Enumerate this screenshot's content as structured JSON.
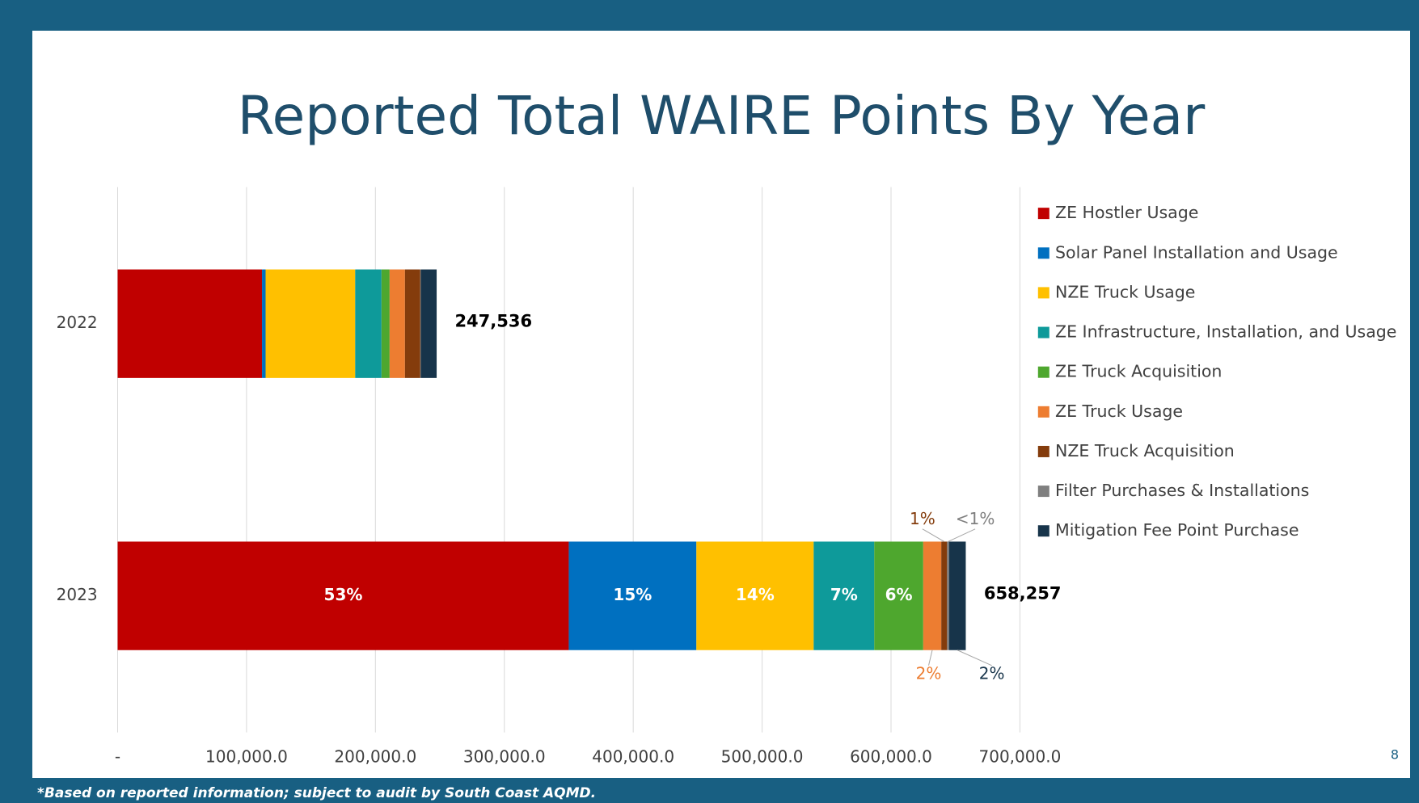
{
  "chart_data": {
    "type": "bar",
    "orientation": "horizontal",
    "stacked": true,
    "title": "Reported Total WAIRE Points By Year",
    "categories": [
      "2022",
      "2023"
    ],
    "series": [
      {
        "name": "ZE Hostler Usage",
        "color": "#c00000",
        "values": [
          112000,
          350000
        ],
        "value_labels": [
          null,
          "53%"
        ]
      },
      {
        "name": "Solar Panel Installation and Usage",
        "color": "#0070c0",
        "values": [
          2800,
          99000
        ],
        "value_labels": [
          null,
          "15%"
        ]
      },
      {
        "name": "NZE Truck Usage",
        "color": "#ffc000",
        "values": [
          69500,
          91000
        ],
        "value_labels": [
          null,
          "14%"
        ]
      },
      {
        "name": "ZE Infrastructure, Installation, and Usage",
        "color": "#0e9a9a",
        "values": [
          20400,
          47000
        ],
        "value_labels": [
          null,
          "7%"
        ]
      },
      {
        "name": "ZE Truck Acquisition",
        "color": "#4ea72e",
        "values": [
          6300,
          38000
        ],
        "value_labels": [
          null,
          "6%"
        ]
      },
      {
        "name": "ZE Truck Usage",
        "color": "#ed7d31",
        "values": [
          11900,
          14000
        ],
        "value_labels": [
          null,
          "2%"
        ]
      },
      {
        "name": "NZE Truck Acquisition",
        "color": "#843c0c",
        "values": [
          11900,
          4500
        ],
        "value_labels": [
          null,
          "1%"
        ]
      },
      {
        "name": "Filter Purchases & Installations",
        "color": "#7f7f7f",
        "values": [
          400,
          1500
        ],
        "value_labels": [
          null,
          "<1%"
        ]
      },
      {
        "name": "Mitigation Fee Point Purchase",
        "color": "#17344a",
        "values": [
          12300,
          13000
        ],
        "value_labels": [
          null,
          "2%"
        ]
      }
    ],
    "totals": [
      247536,
      658257
    ],
    "total_labels": [
      "247,536",
      "658,257"
    ],
    "xlim": [
      0,
      700000
    ],
    "xticks": [
      {
        "value": 0,
        "label": "-"
      },
      {
        "value": 100000,
        "label": "100,000.0"
      },
      {
        "value": 200000,
        "label": "200,000.0"
      },
      {
        "value": 300000,
        "label": "300,000.0"
      },
      {
        "value": 400000,
        "label": "400,000.0"
      },
      {
        "value": 500000,
        "label": "500,000.0"
      },
      {
        "value": 600000,
        "label": "600,000.0"
      },
      {
        "value": 700000,
        "label": "700,000.0"
      }
    ],
    "grid": true,
    "legend": "right"
  },
  "footnote": "*Based on reported information; subject to audit by South Coast AQMD.",
  "page_number": "8"
}
